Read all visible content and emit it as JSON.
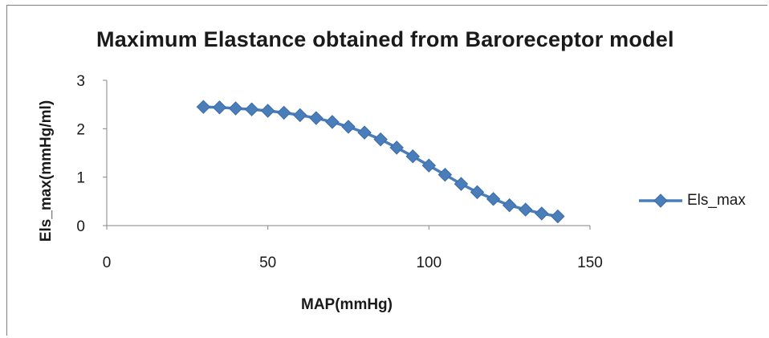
{
  "chart_data": {
    "type": "line",
    "title": "Maximum Elastance obtained from Baroreceptor model",
    "xlabel": "MAP(mmHg)",
    "ylabel": "Els_max(mmHg/ml)",
    "xlim": [
      0,
      150
    ],
    "ylim": [
      0,
      3
    ],
    "xticks": [
      "0",
      "50",
      "100",
      "150"
    ],
    "yticks": [
      "0",
      "1",
      "2",
      "3"
    ],
    "grid": false,
    "legend_position": "right",
    "marker": "diamond",
    "series": [
      {
        "name": "Els_max",
        "color": "#4a7ebb",
        "x": [
          30,
          35,
          40,
          45,
          50,
          55,
          60,
          65,
          70,
          75,
          80,
          85,
          90,
          95,
          100,
          105,
          110,
          115,
          120,
          125,
          130,
          135,
          140
        ],
        "y": [
          2.45,
          2.44,
          2.42,
          2.4,
          2.37,
          2.33,
          2.28,
          2.22,
          2.14,
          2.04,
          1.92,
          1.78,
          1.61,
          1.43,
          1.24,
          1.05,
          0.86,
          0.69,
          0.55,
          0.42,
          0.33,
          0.25,
          0.19
        ]
      }
    ]
  }
}
